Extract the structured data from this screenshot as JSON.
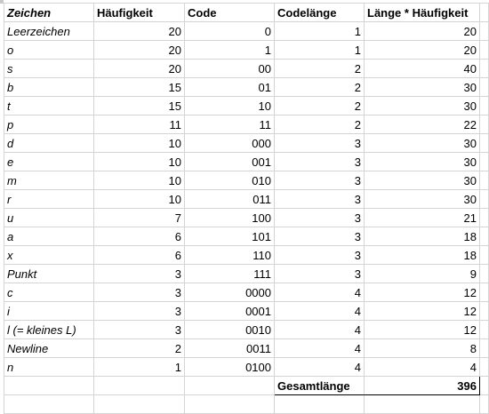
{
  "table": {
    "headers": [
      "Zeichen",
      "Häufigkeit",
      "Code",
      "Codelänge",
      "Länge * Häufigkeit"
    ],
    "rows": [
      {
        "zeichen": "Leerzeichen",
        "haeufigkeit": "20",
        "code": "0",
        "codelaenge": "1",
        "produkt": "20"
      },
      {
        "zeichen": "o",
        "haeufigkeit": "20",
        "code": "1",
        "codelaenge": "1",
        "produkt": "20"
      },
      {
        "zeichen": "s",
        "haeufigkeit": "20",
        "code": "00",
        "codelaenge": "2",
        "produkt": "40"
      },
      {
        "zeichen": "b",
        "haeufigkeit": "15",
        "code": "01",
        "codelaenge": "2",
        "produkt": "30"
      },
      {
        "zeichen": "t",
        "haeufigkeit": "15",
        "code": "10",
        "codelaenge": "2",
        "produkt": "30"
      },
      {
        "zeichen": "p",
        "haeufigkeit": "11",
        "code": "11",
        "codelaenge": "2",
        "produkt": "22"
      },
      {
        "zeichen": "d",
        "haeufigkeit": "10",
        "code": "000",
        "codelaenge": "3",
        "produkt": "30"
      },
      {
        "zeichen": "e",
        "haeufigkeit": "10",
        "code": "001",
        "codelaenge": "3",
        "produkt": "30"
      },
      {
        "zeichen": "m",
        "haeufigkeit": "10",
        "code": "010",
        "codelaenge": "3",
        "produkt": "30"
      },
      {
        "zeichen": "r",
        "haeufigkeit": "10",
        "code": "011",
        "codelaenge": "3",
        "produkt": "30"
      },
      {
        "zeichen": "u",
        "haeufigkeit": "7",
        "code": "100",
        "codelaenge": "3",
        "produkt": "21"
      },
      {
        "zeichen": "a",
        "haeufigkeit": "6",
        "code": "101",
        "codelaenge": "3",
        "produkt": "18"
      },
      {
        "zeichen": "x",
        "haeufigkeit": "6",
        "code": "110",
        "codelaenge": "3",
        "produkt": "18"
      },
      {
        "zeichen": "Punkt",
        "haeufigkeit": "3",
        "code": "111",
        "codelaenge": "3",
        "produkt": "9"
      },
      {
        "zeichen": "c",
        "haeufigkeit": "3",
        "code": "0000",
        "codelaenge": "4",
        "produkt": "12"
      },
      {
        "zeichen": "i",
        "haeufigkeit": "3",
        "code": "0001",
        "codelaenge": "4",
        "produkt": "12"
      },
      {
        "zeichen": "l (= kleines L)",
        "haeufigkeit": "3",
        "code": "0010",
        "codelaenge": "4",
        "produkt": "12"
      },
      {
        "zeichen": "Newline",
        "haeufigkeit": "2",
        "code": "0011",
        "codelaenge": "4",
        "produkt": "8"
      },
      {
        "zeichen": "n",
        "haeufigkeit": "1",
        "code": "0100",
        "codelaenge": "4",
        "produkt": "4"
      }
    ],
    "total_label": "Gesamtlänge",
    "total_value": "396"
  }
}
